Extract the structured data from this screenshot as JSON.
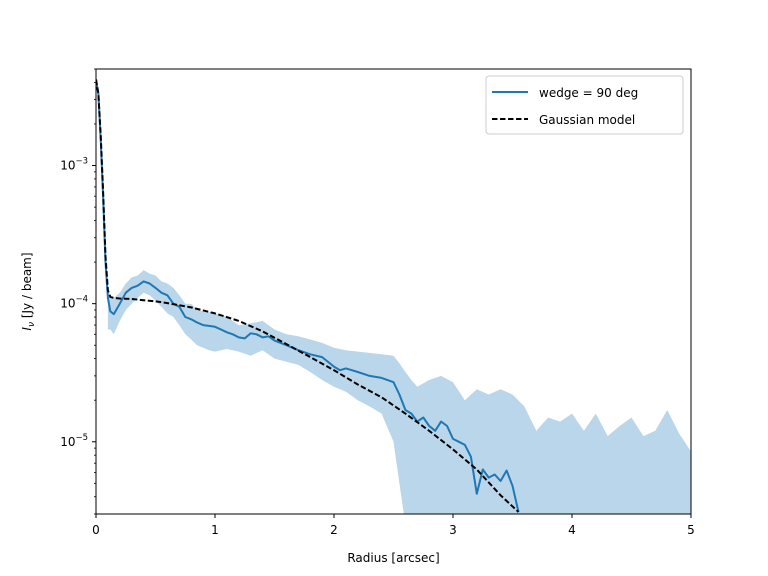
{
  "chart_data": {
    "type": "line",
    "xlabel": "Radius [arcsec]",
    "ylabel": "I_ν [Jy / beam]",
    "ylabel_main": "I",
    "ylabel_sub": "ν",
    "ylabel_rest": " [Jy / beam]",
    "xlim": [
      0,
      5
    ],
    "ylim": [
      3e-06,
      0.005
    ],
    "yscale": "log",
    "grid": false,
    "legend_position": "top-right",
    "x_ticks": [
      0,
      1,
      2,
      3,
      4,
      5
    ],
    "x_tick_labels": [
      "0",
      "1",
      "2",
      "3",
      "4",
      "5"
    ],
    "y_ticks": [
      1e-05,
      0.0001,
      0.001
    ],
    "y_tick_bases": [
      "10",
      "10",
      "10"
    ],
    "y_tick_exps": [
      "−5",
      "−4",
      "−3"
    ],
    "colors": {
      "profile": "#1f77b4",
      "band": "#bad6ea",
      "model": "#000000"
    },
    "series": [
      {
        "name": "wedge = 90 deg",
        "style": "solid",
        "x": [
          0,
          0.02,
          0.04,
          0.06,
          0.08,
          0.1,
          0.12,
          0.15,
          0.2,
          0.25,
          0.3,
          0.35,
          0.4,
          0.45,
          0.5,
          0.55,
          0.6,
          0.65,
          0.7,
          0.75,
          0.8,
          0.85,
          0.9,
          0.95,
          1.0,
          1.05,
          1.1,
          1.15,
          1.2,
          1.25,
          1.3,
          1.35,
          1.4,
          1.45,
          1.5,
          1.6,
          1.7,
          1.8,
          1.9,
          2.0,
          2.05,
          2.1,
          2.15,
          2.2,
          2.3,
          2.4,
          2.5,
          2.55,
          2.6,
          2.65,
          2.7,
          2.75,
          2.8,
          2.85,
          2.9,
          2.95,
          3.0,
          3.05,
          3.1,
          3.15,
          3.2,
          3.25,
          3.3,
          3.35,
          3.4,
          3.45,
          3.5,
          3.55
        ],
        "y": [
          0.0042,
          0.0033,
          0.0015,
          0.0006,
          0.0002,
          0.00011,
          8.8e-05,
          8.4e-05,
          0.0001,
          0.00012,
          0.00013,
          0.000135,
          0.000145,
          0.00014,
          0.00013,
          0.00012,
          0.000115,
          0.0001,
          9.5e-05,
          8e-05,
          7.7e-05,
          7.3e-05,
          7e-05,
          6.9e-05,
          6.8e-05,
          6.5e-05,
          6.2e-05,
          6e-05,
          5.7e-05,
          5.6e-05,
          6.1e-05,
          6e-05,
          5.7e-05,
          5.8e-05,
          5.4e-05,
          5e-05,
          4.6e-05,
          4.3e-05,
          4.1e-05,
          3.5e-05,
          3.3e-05,
          3.4e-05,
          3.3e-05,
          3.2e-05,
          3e-05,
          2.9e-05,
          2.7e-05,
          2.2e-05,
          1.7e-05,
          1.6e-05,
          1.4e-05,
          1.5e-05,
          1.3e-05,
          1.2e-05,
          1.4e-05,
          1.3e-05,
          1.05e-05,
          1e-05,
          9.5e-06,
          7.8e-06,
          4.2e-06,
          6.3e-06,
          5.5e-06,
          5.8e-06,
          5.2e-06,
          6.2e-06,
          4.8e-06,
          3.1e-06
        ]
      },
      {
        "name": "Gaussian model",
        "style": "dashed",
        "x": [
          0,
          0.02,
          0.04,
          0.06,
          0.08,
          0.1,
          0.12,
          0.15,
          0.2,
          0.3,
          0.4,
          0.5,
          0.6,
          0.8,
          1.0,
          1.2,
          1.4,
          1.6,
          1.8,
          2.0,
          2.2,
          2.4,
          2.6,
          2.8,
          3.0,
          3.2,
          3.4,
          3.55
        ],
        "y": [
          0.0042,
          0.0033,
          0.0016,
          0.00065,
          0.00022,
          0.000125,
          0.000112,
          0.00011,
          0.000109,
          0.000108,
          0.000106,
          0.000104,
          0.000101,
          9.4e-05,
          8.5e-05,
          7.5e-05,
          6.3e-05,
          5.1e-05,
          4.1e-05,
          3.3e-05,
          2.6e-05,
          2.1e-05,
          1.6e-05,
          1.2e-05,
          8.8e-06,
          6.3e-06,
          4.1e-06,
          3.1e-06
        ]
      }
    ],
    "band": {
      "name": "uncertainty",
      "x": [
        0.1,
        0.12,
        0.15,
        0.2,
        0.25,
        0.3,
        0.35,
        0.4,
        0.45,
        0.5,
        0.55,
        0.6,
        0.65,
        0.7,
        0.75,
        0.8,
        0.85,
        0.9,
        0.95,
        1.0,
        1.1,
        1.2,
        1.3,
        1.4,
        1.5,
        1.6,
        1.7,
        1.8,
        1.9,
        2.0,
        2.1,
        2.2,
        2.3,
        2.4,
        2.5,
        2.55,
        2.6,
        2.65,
        2.7,
        2.8,
        2.9,
        3.0,
        3.1,
        3.2,
        3.3,
        3.4,
        3.5,
        3.6,
        3.7,
        3.8,
        3.9,
        4.0,
        4.1,
        4.2,
        4.3,
        4.4,
        4.5,
        4.6,
        4.7,
        4.8,
        4.9,
        5.0
      ],
      "upper": [
        0.00013,
        0.00011,
        0.00011,
        0.00012,
        0.00014,
        0.000155,
        0.00016,
        0.000175,
        0.000165,
        0.00016,
        0.000145,
        0.00014,
        0.00013,
        0.000115,
        0.0001,
        0.0001,
        9e-05,
        8.8e-05,
        8.7e-05,
        8.5e-05,
        8e-05,
        7e-05,
        7.2e-05,
        7.5e-05,
        6.5e-05,
        6e-05,
        5.8e-05,
        5.5e-05,
        5.2e-05,
        4.8e-05,
        4.6e-05,
        4.5e-05,
        4.4e-05,
        4.3e-05,
        4.2e-05,
        3.7e-05,
        3.2e-05,
        2.8e-05,
        2.5e-05,
        2.8e-05,
        3e-05,
        2.7e-05,
        2e-05,
        2.4e-05,
        2.2e-05,
        2.4e-05,
        2.2e-05,
        1.8e-05,
        1.2e-05,
        1.5e-05,
        1.4e-05,
        1.6e-05,
        1.2e-05,
        1.6e-05,
        1.1e-05,
        1.3e-05,
        1.5e-05,
        1.1e-05,
        1.2e-05,
        1.7e-05,
        1.15e-05,
        8.5e-06
      ],
      "lower": [
        6.5e-05,
        6.5e-05,
        6e-05,
        7.5e-05,
        9e-05,
        0.0001,
        0.00011,
        0.00012,
        0.000115,
        0.000105,
        9.5e-05,
        8.5e-05,
        8e-05,
        7e-05,
        6e-05,
        5.5e-05,
        5e-05,
        4.8e-05,
        4.6e-05,
        4.5e-05,
        4.7e-05,
        4.5e-05,
        4.2e-05,
        4.6e-05,
        4e-05,
        3.8e-05,
        3.6e-05,
        3.2e-05,
        2.8e-05,
        2.5e-05,
        2.3e-05,
        2e-05,
        1.8e-05,
        1.6e-05,
        1e-05,
        5e-06,
        2.5e-06,
        2.5e-06,
        2.5e-06,
        2.5e-06,
        2.5e-06,
        2.5e-06,
        2.5e-06,
        2.5e-06,
        2.5e-06,
        2.5e-06,
        2.5e-06,
        2.5e-06,
        2.5e-06,
        2.5e-06,
        2.5e-06,
        2.5e-06,
        2.5e-06,
        2.5e-06,
        2.5e-06,
        2.5e-06,
        2.5e-06,
        2.5e-06,
        2.5e-06,
        2.5e-06,
        2.5e-06,
        2.5e-06
      ]
    },
    "legend": [
      {
        "label": "wedge = 90 deg",
        "style": "solid"
      },
      {
        "label": "Gaussian model",
        "style": "dashed"
      }
    ]
  }
}
